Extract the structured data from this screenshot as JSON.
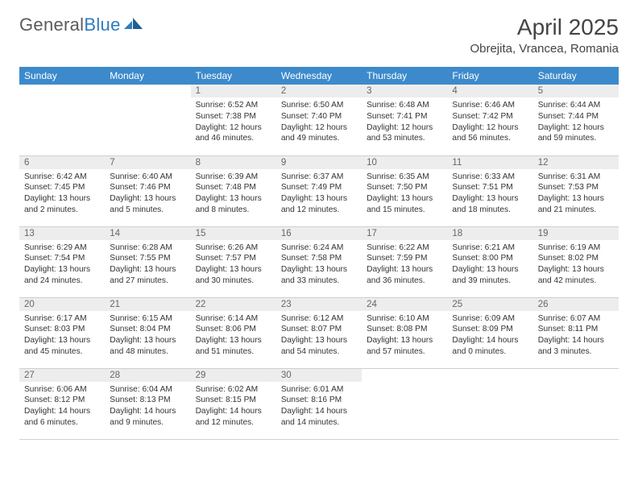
{
  "logo": {
    "word1": "General",
    "word2": "Blue"
  },
  "title": "April 2025",
  "location": "Obrejita, Vrancea, Romania",
  "colors": {
    "header_bg": "#3c8acb",
    "header_fg": "#ffffff",
    "daynum_bg": "#ededed",
    "daynum_fg": "#666666",
    "text": "#333333",
    "border": "#cfcfcf",
    "logo_gray": "#5a5a5a",
    "logo_blue": "#2f7bbf"
  },
  "columns": [
    "Sunday",
    "Monday",
    "Tuesday",
    "Wednesday",
    "Thursday",
    "Friday",
    "Saturday"
  ],
  "weeks": [
    [
      null,
      null,
      {
        "n": "1",
        "sr": "Sunrise: 6:52 AM",
        "ss": "Sunset: 7:38 PM",
        "dl": "Daylight: 12 hours and 46 minutes."
      },
      {
        "n": "2",
        "sr": "Sunrise: 6:50 AM",
        "ss": "Sunset: 7:40 PM",
        "dl": "Daylight: 12 hours and 49 minutes."
      },
      {
        "n": "3",
        "sr": "Sunrise: 6:48 AM",
        "ss": "Sunset: 7:41 PM",
        "dl": "Daylight: 12 hours and 53 minutes."
      },
      {
        "n": "4",
        "sr": "Sunrise: 6:46 AM",
        "ss": "Sunset: 7:42 PM",
        "dl": "Daylight: 12 hours and 56 minutes."
      },
      {
        "n": "5",
        "sr": "Sunrise: 6:44 AM",
        "ss": "Sunset: 7:44 PM",
        "dl": "Daylight: 12 hours and 59 minutes."
      }
    ],
    [
      {
        "n": "6",
        "sr": "Sunrise: 6:42 AM",
        "ss": "Sunset: 7:45 PM",
        "dl": "Daylight: 13 hours and 2 minutes."
      },
      {
        "n": "7",
        "sr": "Sunrise: 6:40 AM",
        "ss": "Sunset: 7:46 PM",
        "dl": "Daylight: 13 hours and 5 minutes."
      },
      {
        "n": "8",
        "sr": "Sunrise: 6:39 AM",
        "ss": "Sunset: 7:48 PM",
        "dl": "Daylight: 13 hours and 8 minutes."
      },
      {
        "n": "9",
        "sr": "Sunrise: 6:37 AM",
        "ss": "Sunset: 7:49 PM",
        "dl": "Daylight: 13 hours and 12 minutes."
      },
      {
        "n": "10",
        "sr": "Sunrise: 6:35 AM",
        "ss": "Sunset: 7:50 PM",
        "dl": "Daylight: 13 hours and 15 minutes."
      },
      {
        "n": "11",
        "sr": "Sunrise: 6:33 AM",
        "ss": "Sunset: 7:51 PM",
        "dl": "Daylight: 13 hours and 18 minutes."
      },
      {
        "n": "12",
        "sr": "Sunrise: 6:31 AM",
        "ss": "Sunset: 7:53 PM",
        "dl": "Daylight: 13 hours and 21 minutes."
      }
    ],
    [
      {
        "n": "13",
        "sr": "Sunrise: 6:29 AM",
        "ss": "Sunset: 7:54 PM",
        "dl": "Daylight: 13 hours and 24 minutes."
      },
      {
        "n": "14",
        "sr": "Sunrise: 6:28 AM",
        "ss": "Sunset: 7:55 PM",
        "dl": "Daylight: 13 hours and 27 minutes."
      },
      {
        "n": "15",
        "sr": "Sunrise: 6:26 AM",
        "ss": "Sunset: 7:57 PM",
        "dl": "Daylight: 13 hours and 30 minutes."
      },
      {
        "n": "16",
        "sr": "Sunrise: 6:24 AM",
        "ss": "Sunset: 7:58 PM",
        "dl": "Daylight: 13 hours and 33 minutes."
      },
      {
        "n": "17",
        "sr": "Sunrise: 6:22 AM",
        "ss": "Sunset: 7:59 PM",
        "dl": "Daylight: 13 hours and 36 minutes."
      },
      {
        "n": "18",
        "sr": "Sunrise: 6:21 AM",
        "ss": "Sunset: 8:00 PM",
        "dl": "Daylight: 13 hours and 39 minutes."
      },
      {
        "n": "19",
        "sr": "Sunrise: 6:19 AM",
        "ss": "Sunset: 8:02 PM",
        "dl": "Daylight: 13 hours and 42 minutes."
      }
    ],
    [
      {
        "n": "20",
        "sr": "Sunrise: 6:17 AM",
        "ss": "Sunset: 8:03 PM",
        "dl": "Daylight: 13 hours and 45 minutes."
      },
      {
        "n": "21",
        "sr": "Sunrise: 6:15 AM",
        "ss": "Sunset: 8:04 PM",
        "dl": "Daylight: 13 hours and 48 minutes."
      },
      {
        "n": "22",
        "sr": "Sunrise: 6:14 AM",
        "ss": "Sunset: 8:06 PM",
        "dl": "Daylight: 13 hours and 51 minutes."
      },
      {
        "n": "23",
        "sr": "Sunrise: 6:12 AM",
        "ss": "Sunset: 8:07 PM",
        "dl": "Daylight: 13 hours and 54 minutes."
      },
      {
        "n": "24",
        "sr": "Sunrise: 6:10 AM",
        "ss": "Sunset: 8:08 PM",
        "dl": "Daylight: 13 hours and 57 minutes."
      },
      {
        "n": "25",
        "sr": "Sunrise: 6:09 AM",
        "ss": "Sunset: 8:09 PM",
        "dl": "Daylight: 14 hours and 0 minutes."
      },
      {
        "n": "26",
        "sr": "Sunrise: 6:07 AM",
        "ss": "Sunset: 8:11 PM",
        "dl": "Daylight: 14 hours and 3 minutes."
      }
    ],
    [
      {
        "n": "27",
        "sr": "Sunrise: 6:06 AM",
        "ss": "Sunset: 8:12 PM",
        "dl": "Daylight: 14 hours and 6 minutes."
      },
      {
        "n": "28",
        "sr": "Sunrise: 6:04 AM",
        "ss": "Sunset: 8:13 PM",
        "dl": "Daylight: 14 hours and 9 minutes."
      },
      {
        "n": "29",
        "sr": "Sunrise: 6:02 AM",
        "ss": "Sunset: 8:15 PM",
        "dl": "Daylight: 14 hours and 12 minutes."
      },
      {
        "n": "30",
        "sr": "Sunrise: 6:01 AM",
        "ss": "Sunset: 8:16 PM",
        "dl": "Daylight: 14 hours and 14 minutes."
      },
      null,
      null,
      null
    ]
  ]
}
